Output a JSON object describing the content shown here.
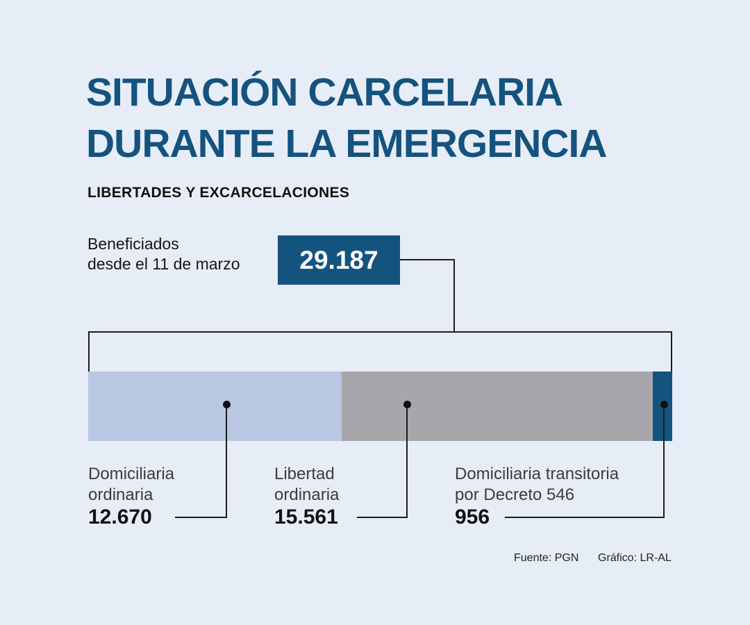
{
  "colors": {
    "background": "#e7edf6",
    "accent_blue": "#15537f",
    "segment_lightblue": "#b9c7e2",
    "segment_gray": "#a7a7ab"
  },
  "title": "SITUACIÓN CARCELARIA\nDURANTE LA EMERGENCIA",
  "subtitle": "LIBERTADES Y EXCARCELACIONES",
  "total": {
    "label": "Beneficiados\ndesde el 11 de marzo",
    "value_display": "29.187"
  },
  "footer": {
    "source": "Fuente: PGN",
    "credit": "Gráfico: LR-AL"
  },
  "chart_data": {
    "type": "bar",
    "subtype": "horizontal-stacked",
    "title": "SITUACIÓN CARCELARIA DURANTE LA EMERGENCIA",
    "subtitle": "LIBERTADES Y EXCARCELACIONES",
    "total_label": "Beneficiados desde el 11 de marzo",
    "total_value": 29187,
    "total_value_display": "29.187",
    "legend_position": "below-bar",
    "grid": false,
    "segments": [
      {
        "label": "Domiciliaria\nordinaria",
        "value": 12670,
        "display_value": "12.670",
        "color": "#b9c7e2"
      },
      {
        "label": "Libertad\nordinaria",
        "value": 15561,
        "display_value": "15.561",
        "color": "#a7a7ab"
      },
      {
        "label": "Domiciliaria transitoria\npor Decreto 546",
        "value": 956,
        "display_value": "956",
        "color": "#15537f"
      }
    ],
    "source": "Fuente: PGN",
    "credit": "Gráfico: LR-AL"
  }
}
